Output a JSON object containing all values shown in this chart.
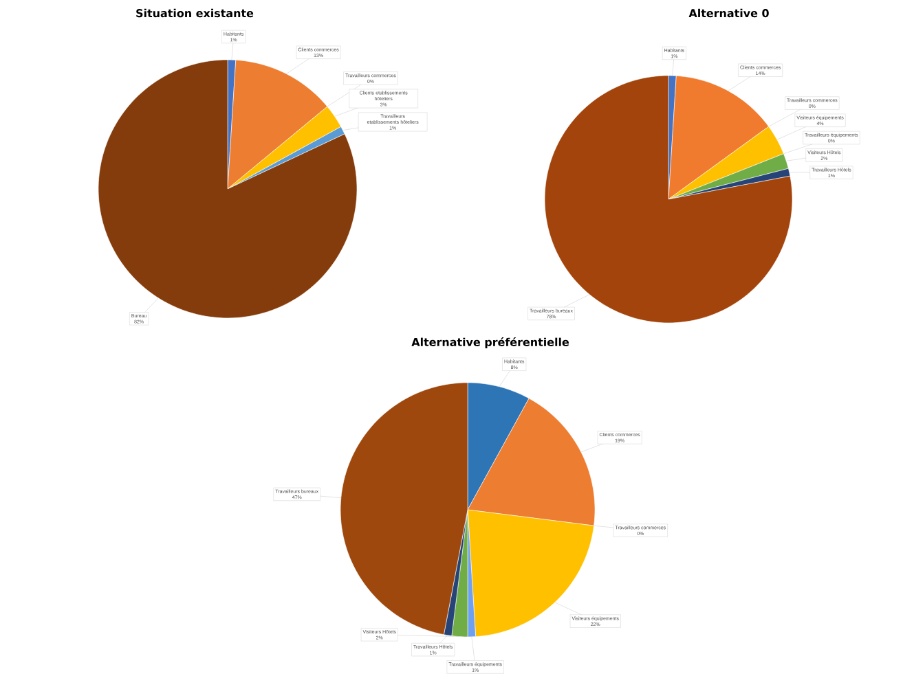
{
  "chart_data": [
    {
      "type": "pie",
      "title": "Situation existante",
      "categories": [
        "Habitants",
        "Clients commerces",
        "Travailleurs commerces",
        "Clients etablissements hôteliers",
        "Travailleurs etablissements hôteliers",
        "Bureau"
      ],
      "values": [
        1,
        13,
        0,
        3,
        1,
        82
      ],
      "value_labels": [
        "1%",
        "13%",
        "0%",
        "3%",
        "1%",
        "82%"
      ],
      "colors": [
        "#4472c4",
        "#ed7d31",
        "#a5a5a5",
        "#ffc000",
        "#5b9bd5",
        "#843c0c"
      ]
    },
    {
      "type": "pie",
      "title": "Alternative 0",
      "categories": [
        "Habitants",
        "Clients commerces",
        "Travailleurs commerces",
        "Visiteurs équipements",
        "Travailleurs équipements",
        "Visiteurs Hôtels",
        "Travailleurs Hôtels",
        "Travailleurs bureaux"
      ],
      "values": [
        1,
        14,
        0,
        4,
        0,
        2,
        1,
        78
      ],
      "value_labels": [
        "1%",
        "14%",
        "0%",
        "4%",
        "0%",
        "2%",
        "1%",
        "78%"
      ],
      "colors": [
        "#4472c4",
        "#f07a2e",
        "#a5a5a5",
        "#ffc000",
        "#5b9bd5",
        "#70ad47",
        "#264478",
        "#a2440c"
      ]
    },
    {
      "type": "pie",
      "title": "Alternative préférentielle",
      "categories": [
        "Habitants",
        "Clients commerces",
        "Travailleurs commerces",
        "Visiteurs équipements",
        "Travailleurs équipements",
        "Visiteurs Hôtels",
        "Travailleurs Hôtels",
        "Travailleurs bureaux"
      ],
      "values": [
        8,
        19,
        0,
        22,
        1,
        2,
        1,
        47
      ],
      "value_labels": [
        "8%",
        "19%",
        "0%",
        "22%",
        "1%",
        "2%",
        "1%",
        "47%"
      ],
      "colors": [
        "#2e75b6",
        "#ed7d31",
        "#a5a5a5",
        "#ffc000",
        "#6fa0f0",
        "#70ad47",
        "#264478",
        "#9e480e"
      ]
    }
  ]
}
